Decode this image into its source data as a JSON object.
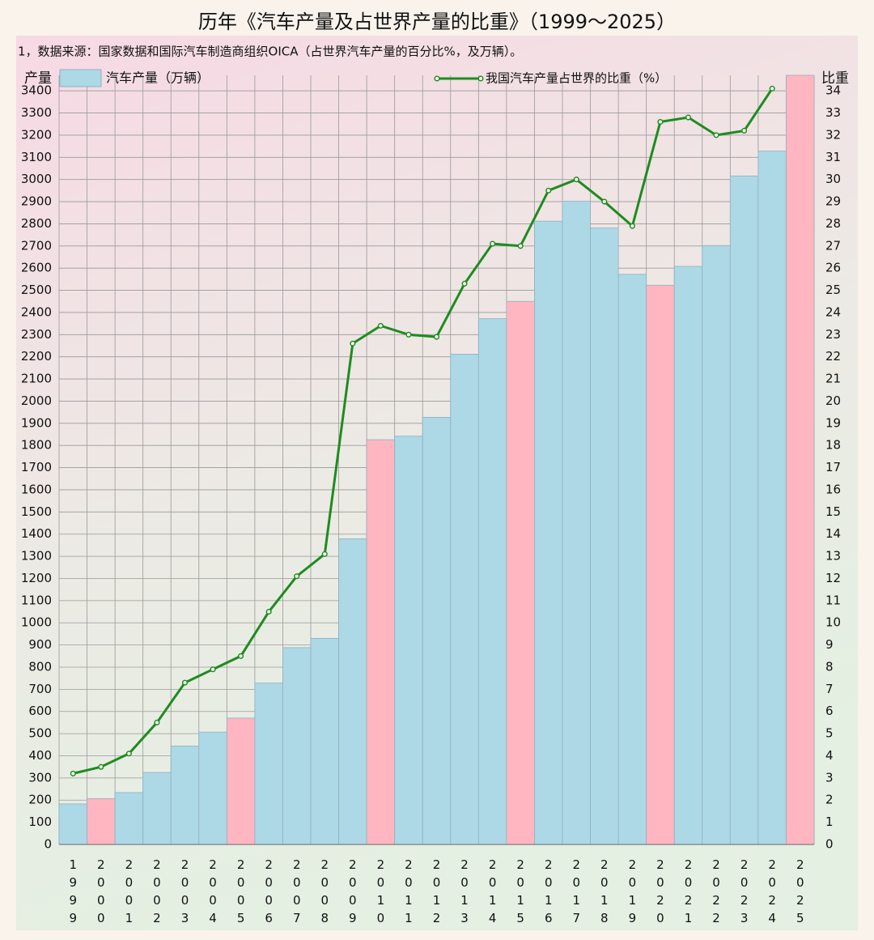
{
  "chart_data": {
    "type": "bar_line",
    "title": "历年《汽车产量及占世界产量的比重》（1999～2025）",
    "subtitle": "1，数据来源：国家数据和国际汽车制造商组织OICA（占世界汽车产量的百分比%，及万辆）。",
    "y_label": "产量",
    "y2_label": "比重",
    "categories": [
      "1999",
      "2000",
      "2001",
      "2002",
      "2003",
      "2004",
      "2005",
      "2006",
      "2007",
      "2008",
      "2009",
      "2010",
      "2011",
      "2012",
      "2013",
      "2014",
      "2015",
      "2016",
      "2017",
      "2018",
      "2019",
      "2020",
      "2021",
      "2022",
      "2023",
      "2024",
      "2025"
    ],
    "series": [
      {
        "name": "汽车产量（万辆）",
        "type": "bar",
        "color": "#add8e6",
        "colors": [
          "#add8e6",
          "#ffb6c1",
          "#add8e6",
          "#add8e6",
          "#add8e6",
          "#add8e6",
          "#ffb6c1",
          "#add8e6",
          "#add8e6",
          "#add8e6",
          "#add8e6",
          "#ffb6c1",
          "#add8e6",
          "#add8e6",
          "#add8e6",
          "#add8e6",
          "#ffb6c1",
          "#add8e6",
          "#add8e6",
          "#add8e6",
          "#add8e6",
          "#ffb6c1",
          "#add8e6",
          "#add8e6",
          "#add8e6",
          "#add8e6",
          "#ffb6c1"
        ],
        "values": [
          183,
          207,
          234,
          325,
          444,
          507,
          570,
          728,
          888,
          930,
          1379,
          1826,
          1842,
          1927,
          2212,
          2372,
          2450,
          2812,
          2902,
          2781,
          2572,
          2523,
          2608,
          2702,
          3016,
          3128,
          3470
        ]
      },
      {
        "name": "我国汽车产量占世界的比重（%）",
        "type": "line",
        "axis": "y2",
        "color": "#1e8c1e",
        "values": [
          3.2,
          3.5,
          4.1,
          5.5,
          7.3,
          7.9,
          8.5,
          10.5,
          12.1,
          13.1,
          22.6,
          23.4,
          23.0,
          22.9,
          25.3,
          27.1,
          27.0,
          29.5,
          30.0,
          29.0,
          27.9,
          32.6,
          32.8,
          32.0,
          32.2,
          34.1,
          null
        ]
      }
    ],
    "ylim": [
      0,
      3470
    ],
    "yticks": [
      0,
      100,
      200,
      300,
      400,
      500,
      600,
      700,
      800,
      900,
      1000,
      1100,
      1200,
      1300,
      1400,
      1500,
      1600,
      1700,
      1800,
      1900,
      2000,
      2100,
      2200,
      2300,
      2400,
      2500,
      2600,
      2700,
      2800,
      2900,
      3000,
      3100,
      3200,
      3300,
      3400
    ],
    "y2lim": [
      0,
      34.7
    ],
    "y2ticks": [
      0,
      1,
      2,
      3,
      4,
      5,
      6,
      7,
      8,
      9,
      10,
      11,
      12,
      13,
      14,
      15,
      16,
      17,
      18,
      19,
      20,
      21,
      22,
      23,
      24,
      25,
      26,
      27,
      28,
      29,
      30,
      31,
      32,
      33,
      34
    ],
    "grid": true
  }
}
